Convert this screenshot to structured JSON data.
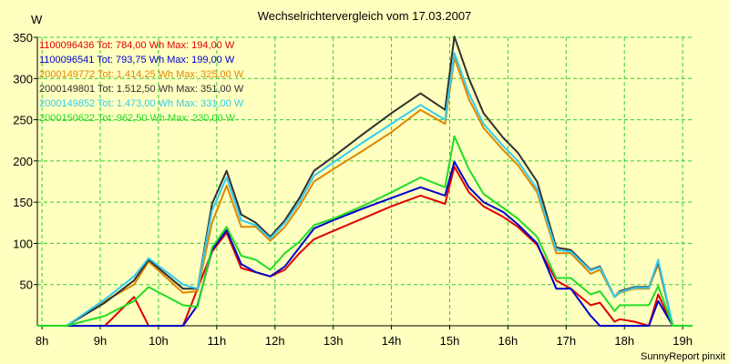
{
  "title": "Wechselrichtervergleich vom 17.03.2007",
  "y_unit": "W",
  "footer": "SunnyReport pinxit",
  "chart_data": {
    "type": "line",
    "title": "Wechselrichtervergleich vom 17.03.2007",
    "ylabel": "W",
    "xlabel": "",
    "ylim": [
      0,
      350
    ],
    "xlim": [
      7.92,
      19.17
    ],
    "grid": true,
    "legend_position": "top-left",
    "y_ticks": [
      50,
      100,
      150,
      200,
      250,
      300,
      350
    ],
    "x_ticks": [
      8,
      9,
      10,
      11,
      12,
      13,
      14,
      15,
      16,
      17,
      18,
      19
    ],
    "x_tick_labels": [
      "8h",
      "9h",
      "10h",
      "11h",
      "12h",
      "13h",
      "14h",
      "15h",
      "16h",
      "17h",
      "18h",
      "19h"
    ],
    "series": [
      {
        "name": "1100096436",
        "legend": "1100096436 Tot: 784,00 Wh Max: 194,00 W",
        "color": "#E00000",
        "x": [
          7.92,
          8.42,
          9.08,
          9.58,
          9.83,
          10.42,
          10.67,
          10.92,
          11.17,
          11.42,
          11.67,
          11.92,
          12.17,
          12.42,
          12.67,
          13.0,
          13.5,
          14.0,
          14.5,
          14.92,
          15.08,
          15.33,
          15.58,
          15.92,
          16.17,
          16.5,
          16.83,
          17.08,
          17.42,
          17.58,
          17.83,
          17.92,
          18.17,
          18.42,
          18.58,
          18.83,
          19.17
        ],
        "y": [
          0,
          0,
          0,
          35,
          0,
          0,
          45,
          90,
          113,
          70,
          65,
          60,
          68,
          88,
          105,
          115,
          130,
          145,
          158,
          148,
          193,
          162,
          145,
          132,
          120,
          98,
          55,
          45,
          25,
          28,
          5,
          8,
          5,
          0,
          38,
          0,
          0
        ]
      },
      {
        "name": "1100096541",
        "legend": "1100096541 Tot: 793,75 Wh Max: 199,00 W",
        "color": "#0000CC",
        "x": [
          7.92,
          8.42,
          9.08,
          9.58,
          9.83,
          10.42,
          10.67,
          10.92,
          11.17,
          11.42,
          11.67,
          11.92,
          12.17,
          12.42,
          12.67,
          13.0,
          13.5,
          14.0,
          14.5,
          14.92,
          15.08,
          15.33,
          15.58,
          15.92,
          16.17,
          16.5,
          16.83,
          17.08,
          17.42,
          17.58,
          17.83,
          17.92,
          18.17,
          18.42,
          18.58,
          18.83,
          19.17
        ],
        "y": [
          0,
          0,
          0,
          0,
          0,
          0,
          25,
          92,
          116,
          75,
          65,
          60,
          72,
          95,
          118,
          128,
          142,
          155,
          168,
          158,
          199,
          168,
          150,
          138,
          123,
          100,
          45,
          45,
          12,
          0,
          0,
          0,
          0,
          0,
          30,
          0,
          0
        ]
      },
      {
        "name": "2000149772",
        "legend": "2000149772 Tot: 1.414,25 Wh Max: 325,00 W",
        "color": "#DD8800",
        "x": [
          7.92,
          8.42,
          9.08,
          9.58,
          9.83,
          10.42,
          10.67,
          10.92,
          11.17,
          11.42,
          11.67,
          11.92,
          12.17,
          12.42,
          12.67,
          13.0,
          13.5,
          14.0,
          14.5,
          14.92,
          15.08,
          15.33,
          15.58,
          15.92,
          16.17,
          16.5,
          16.83,
          17.08,
          17.42,
          17.58,
          17.83,
          17.92,
          18.17,
          18.42,
          18.58,
          18.83,
          19.17
        ],
        "y": [
          0,
          0,
          30,
          50,
          78,
          40,
          42,
          125,
          170,
          120,
          120,
          103,
          120,
          145,
          175,
          190,
          212,
          235,
          262,
          245,
          325,
          275,
          240,
          213,
          195,
          162,
          88,
          88,
          63,
          68,
          35,
          40,
          45,
          45,
          75,
          0,
          0
        ]
      },
      {
        "name": "2000149801",
        "legend": "2000149801 Tot: 1.512,50 Wh Max: 351,00 W",
        "color": "#303030",
        "x": [
          7.92,
          8.42,
          9.08,
          9.58,
          9.83,
          10.42,
          10.67,
          10.92,
          11.17,
          11.42,
          11.67,
          11.92,
          12.17,
          12.42,
          12.67,
          13.0,
          13.5,
          14.0,
          14.5,
          14.92,
          15.08,
          15.33,
          15.58,
          15.92,
          16.17,
          16.5,
          16.83,
          17.08,
          17.42,
          17.58,
          17.83,
          17.92,
          18.17,
          18.42,
          18.58,
          18.83,
          19.17
        ],
        "y": [
          0,
          0,
          28,
          55,
          80,
          45,
          45,
          148,
          188,
          135,
          125,
          108,
          128,
          155,
          188,
          205,
          232,
          258,
          282,
          262,
          351,
          300,
          258,
          228,
          210,
          175,
          95,
          92,
          68,
          72,
          35,
          42,
          47,
          47,
          78,
          0,
          0
        ]
      },
      {
        "name": "2000149852",
        "legend": "2000149852 Tot: 1.473,00 Wh Max: 331,00 W",
        "color": "#33CCEE",
        "x": [
          7.92,
          8.42,
          9.08,
          9.58,
          9.83,
          10.42,
          10.67,
          10.92,
          11.17,
          11.42,
          11.67,
          11.92,
          12.17,
          12.42,
          12.67,
          13.0,
          13.5,
          14.0,
          14.5,
          14.92,
          15.08,
          15.33,
          15.58,
          15.92,
          16.17,
          16.5,
          16.83,
          17.08,
          17.42,
          17.58,
          17.83,
          17.92,
          18.17,
          18.42,
          18.58,
          18.83,
          19.17
        ],
        "y": [
          0,
          0,
          32,
          60,
          82,
          50,
          45,
          140,
          180,
          128,
          122,
          106,
          125,
          150,
          182,
          198,
          222,
          245,
          268,
          250,
          331,
          282,
          245,
          218,
          200,
          166,
          92,
          90,
          67,
          71,
          35,
          41,
          46,
          46,
          80,
          0,
          0
        ]
      },
      {
        "name": "2000150622",
        "legend": "2000150622 Tot: 962,50 Wh Max: 230,00 W",
        "color": "#22DD22",
        "x": [
          7.92,
          8.42,
          9.08,
          9.58,
          9.83,
          10.42,
          10.67,
          10.92,
          11.17,
          11.42,
          11.67,
          11.92,
          12.17,
          12.42,
          12.67,
          13.0,
          13.5,
          14.0,
          14.5,
          14.92,
          15.08,
          15.33,
          15.58,
          15.92,
          16.17,
          16.5,
          16.83,
          17.08,
          17.42,
          17.58,
          17.83,
          17.92,
          18.17,
          18.42,
          18.58,
          18.83,
          19.17
        ],
        "y": [
          0,
          0,
          12,
          30,
          47,
          25,
          23,
          95,
          120,
          85,
          80,
          68,
          88,
          102,
          122,
          130,
          145,
          162,
          180,
          168,
          230,
          190,
          160,
          143,
          130,
          108,
          58,
          58,
          38,
          42,
          18,
          25,
          25,
          25,
          48,
          0,
          0
        ]
      }
    ]
  }
}
